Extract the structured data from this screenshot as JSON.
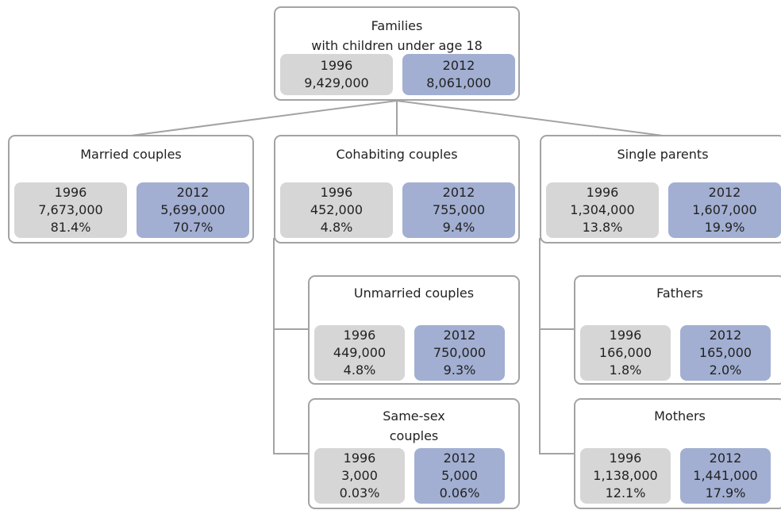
{
  "nodes": [
    {
      "title": [
        "Families",
        "with children under age 18"
      ],
      "stats": [
        {
          "year": "1996",
          "count": "9,429,000"
        },
        {
          "year": "2012",
          "count": "8,061,000"
        }
      ]
    },
    {
      "title": [
        "Married couples"
      ],
      "stats": [
        {
          "year": "1996",
          "count": "7,673,000",
          "share": "81.4%"
        },
        {
          "year": "2012",
          "count": "5,699,000",
          "share": "70.7%"
        }
      ]
    },
    {
      "title": [
        "Cohabiting couples"
      ],
      "stats": [
        {
          "year": "1996",
          "count": "452,000",
          "share": "4.8%"
        },
        {
          "year": "2012",
          "count": "755,000",
          "share": "9.4%"
        }
      ]
    },
    {
      "title": [
        "Single parents"
      ],
      "stats": [
        {
          "year": "1996",
          "count": "1,304,000",
          "share": "13.8%"
        },
        {
          "year": "2012",
          "count": "1,607,000",
          "share": "19.9%"
        }
      ]
    },
    {
      "title": [
        "Unmarried couples"
      ],
      "stats": [
        {
          "year": "1996",
          "count": "449,000",
          "share": "4.8%"
        },
        {
          "year": "2012",
          "count": "750,000",
          "share": "9.3%"
        }
      ]
    },
    {
      "title": [
        "Same-sex",
        "couples"
      ],
      "stats": [
        {
          "year": "1996",
          "count": "3,000",
          "share": "0.03%"
        },
        {
          "year": "2012",
          "count": "5,000",
          "share": "0.06%"
        }
      ]
    },
    {
      "title": [
        "Fathers"
      ],
      "stats": [
        {
          "year": "1996",
          "count": "166,000",
          "share": "1.8%"
        },
        {
          "year": "2012",
          "count": "165,000",
          "share": "2.0%"
        }
      ]
    },
    {
      "title": [
        "Mothers"
      ],
      "stats": [
        {
          "year": "1996",
          "count": "1,138,000",
          "share": "12.1%"
        },
        {
          "year": "2012",
          "count": "1,441,000",
          "share": "17.9%"
        }
      ]
    }
  ]
}
